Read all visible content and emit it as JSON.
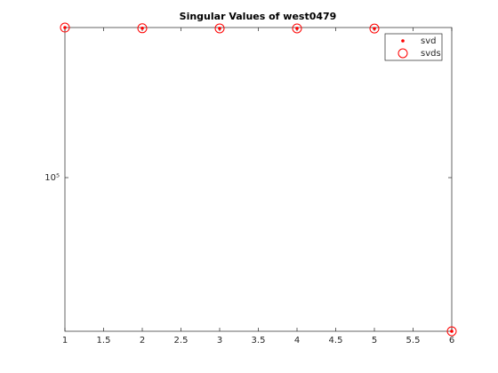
{
  "chart_data": {
    "type": "scatter",
    "title": "Singular Values of west0479",
    "x": [
      1,
      2,
      3,
      4,
      5,
      6
    ],
    "series": [
      {
        "name": "svd",
        "color": "#ff0000",
        "marker": "dot",
        "values": [
          318900,
          317250,
          316950,
          316850,
          316550,
          30500
        ]
      },
      {
        "name": "svds",
        "color": "#ff0000",
        "marker": "circle",
        "values": [
          318900,
          317250,
          316950,
          316850,
          316550,
          30500
        ]
      }
    ],
    "xlim": [
      1,
      6
    ],
    "xticks": [
      1,
      1.5,
      2,
      2.5,
      3,
      3.5,
      4,
      4.5,
      5,
      5.5,
      6
    ],
    "ylim": [
      30500,
      319000
    ],
    "yscale": "log",
    "yticks": [
      {
        "value": 100000,
        "label": "10⁵"
      }
    ],
    "grid": false,
    "legend": "top-right"
  }
}
